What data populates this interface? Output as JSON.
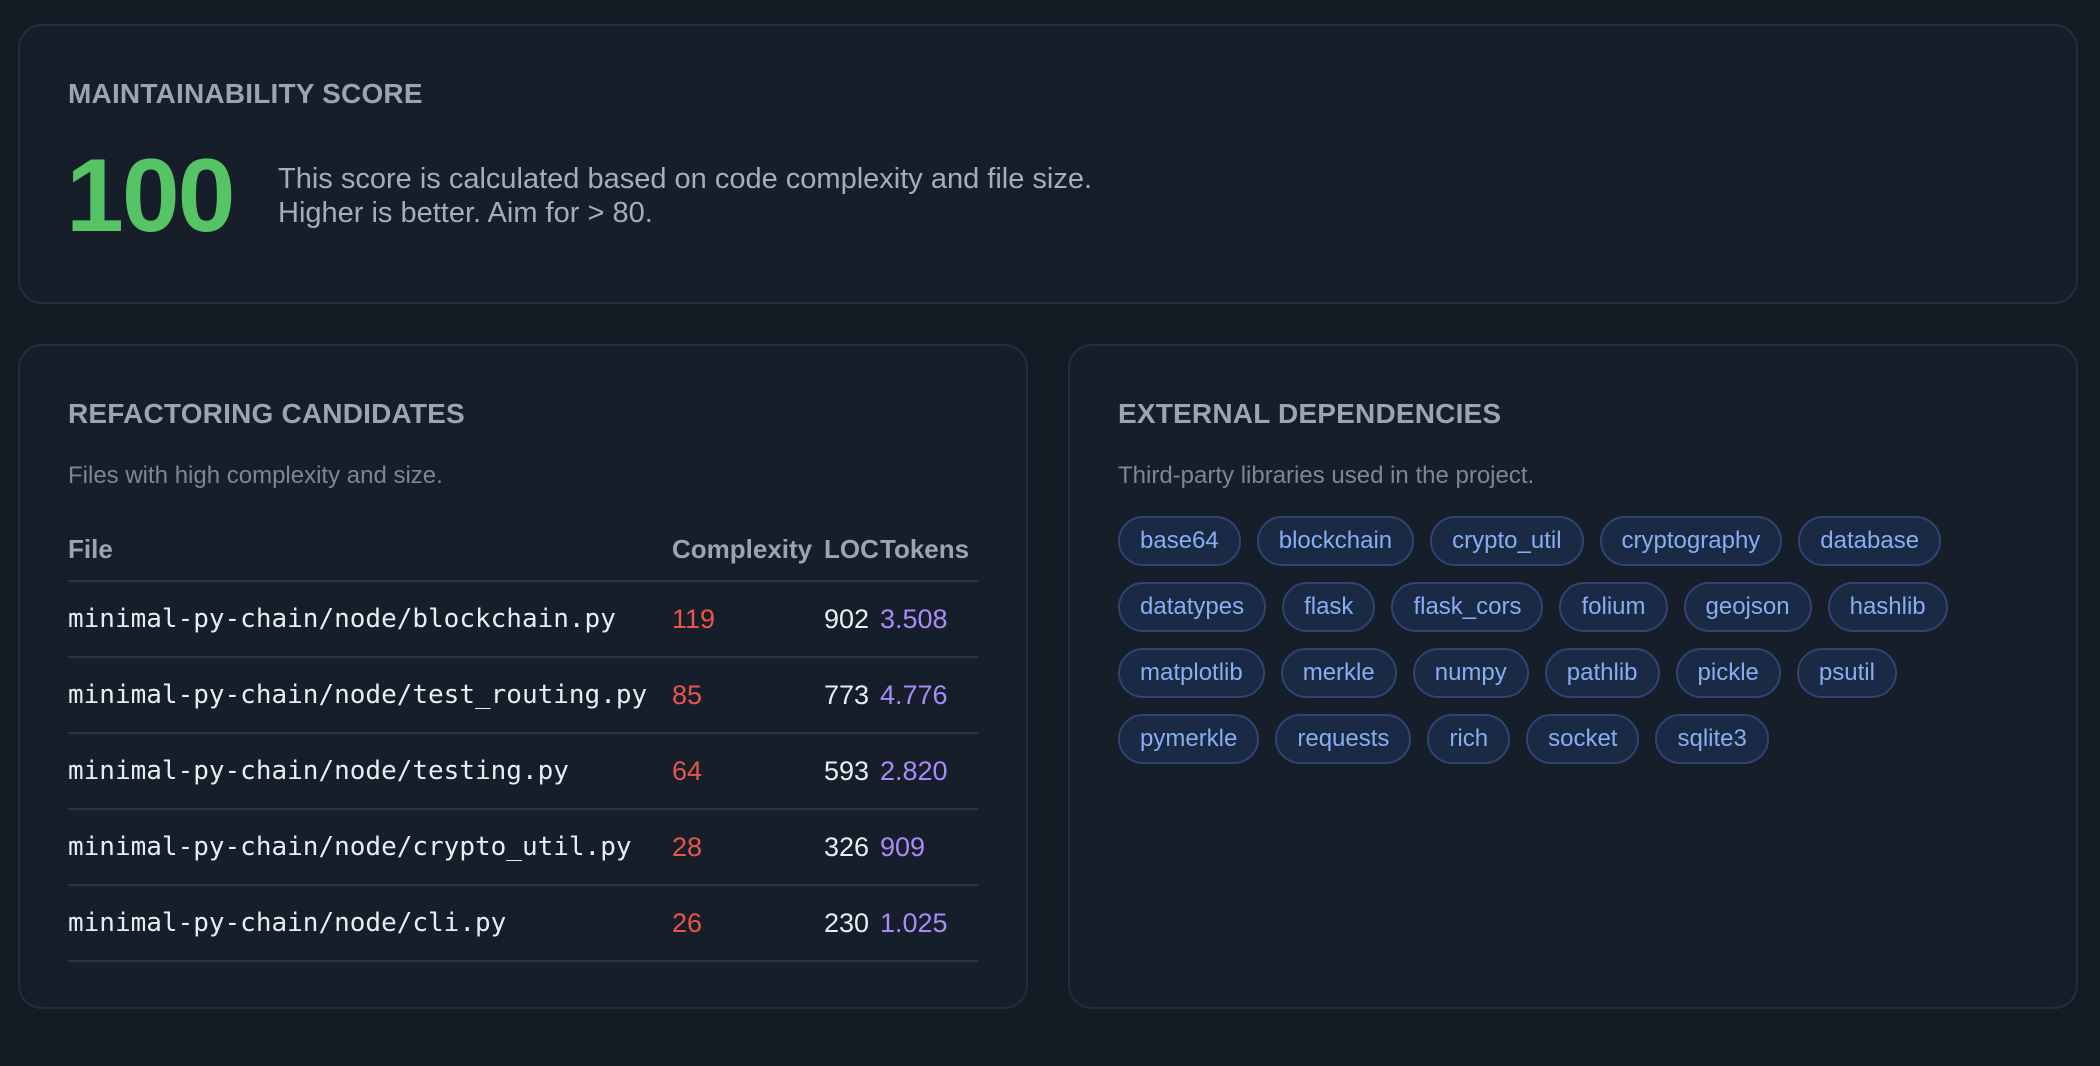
{
  "maintainability": {
    "title": "MAINTAINABILITY SCORE",
    "score": "100",
    "description_line1": "This score is calculated based on code complexity and file size.",
    "description_line2": "Higher is better. Aim for > 80.",
    "score_color": "#56c465"
  },
  "refactoring": {
    "title": "REFACTORING CANDIDATES",
    "subtitle": "Files with high complexity and size.",
    "columns": {
      "file": "File",
      "complexity": "Complexity",
      "loc": "LOC",
      "tokens": "Tokens"
    },
    "rows": [
      {
        "file": "minimal-py-chain/node/blockchain.py",
        "complexity": "119",
        "loc": "902",
        "tokens": "3.508"
      },
      {
        "file": "minimal-py-chain/node/test_routing.py",
        "complexity": "85",
        "loc": "773",
        "tokens": "4.776"
      },
      {
        "file": "minimal-py-chain/node/testing.py",
        "complexity": "64",
        "loc": "593",
        "tokens": "2.820"
      },
      {
        "file": "minimal-py-chain/node/crypto_util.py",
        "complexity": "28",
        "loc": "326",
        "tokens": "909"
      },
      {
        "file": "minimal-py-chain/node/cli.py",
        "complexity": "26",
        "loc": "230",
        "tokens": "1.025"
      }
    ],
    "complexity_color": "#e8554e",
    "tokens_color": "#a78bfa"
  },
  "dependencies": {
    "title": "EXTERNAL DEPENDENCIES",
    "subtitle": "Third-party libraries used in the project.",
    "items": [
      "base64",
      "blockchain",
      "crypto_util",
      "cryptography",
      "database",
      "datatypes",
      "flask",
      "flask_cors",
      "folium",
      "geojson",
      "hashlib",
      "matplotlib",
      "merkle",
      "numpy",
      "pathlib",
      "pickle",
      "psutil",
      "pymerkle",
      "requests",
      "rich",
      "socket",
      "sqlite3"
    ]
  }
}
